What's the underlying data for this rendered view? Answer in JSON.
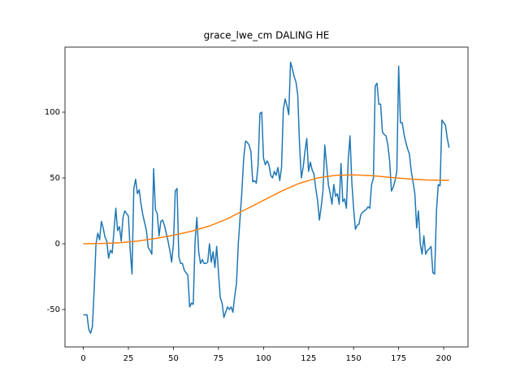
{
  "chart_data": {
    "type": "line",
    "title": "grace_lwe_cm DALING HE",
    "xlim": [
      -10.2,
      213.5
    ],
    "ylim": [
      -78.4,
      149.4
    ],
    "xticks": [
      0,
      25,
      50,
      75,
      100,
      125,
      150,
      175,
      200
    ],
    "yticks": [
      -50,
      0,
      50,
      100
    ],
    "series": [
      {
        "color": "#1f77b4",
        "x": [
          0,
          1,
          2,
          3,
          4,
          5,
          6,
          7,
          8,
          9,
          10,
          11,
          12,
          13,
          14,
          15,
          16,
          17,
          18,
          19,
          20,
          21,
          22,
          23,
          24,
          25,
          26,
          27,
          28,
          29,
          30,
          31,
          32,
          33,
          34,
          35,
          36,
          37,
          38,
          39,
          40,
          41,
          42,
          43,
          44,
          45,
          46,
          47,
          48,
          49,
          50,
          51,
          52,
          53,
          54,
          55,
          56,
          57,
          58,
          59,
          60,
          61,
          62,
          63,
          64,
          65,
          66,
          67,
          68,
          69,
          70,
          71,
          72,
          73,
          74,
          75,
          76,
          77,
          78,
          79,
          80,
          81,
          82,
          83,
          84,
          85,
          86,
          87,
          88,
          89,
          90,
          91,
          92,
          93,
          94,
          95,
          96,
          97,
          98,
          99,
          100,
          101,
          102,
          103,
          104,
          105,
          106,
          107,
          108,
          109,
          110,
          111,
          112,
          113,
          114,
          115,
          116,
          117,
          118,
          119,
          120,
          121,
          122,
          123,
          124,
          125,
          126,
          127,
          128,
          129,
          130,
          131,
          132,
          133,
          134,
          135,
          136,
          137,
          138,
          139,
          140,
          141,
          142,
          143,
          144,
          145,
          146,
          147,
          148,
          149,
          150,
          151,
          152,
          153,
          154,
          155,
          156,
          157,
          158,
          159,
          160,
          161,
          162,
          163,
          164,
          165,
          166,
          167,
          168,
          169,
          170,
          171,
          172,
          173,
          174,
          175,
          176,
          177,
          178,
          179,
          180,
          181,
          182,
          183,
          184,
          185,
          186,
          187,
          188,
          189,
          190,
          191,
          192,
          193,
          194,
          195,
          196,
          197,
          198,
          199,
          200,
          201,
          202,
          203
        ],
        "values": [
          -54,
          -54,
          -54,
          -65,
          -68,
          -63,
          -35,
          0,
          8,
          3,
          17,
          12,
          5,
          2,
          -11,
          -5,
          -7,
          10,
          27,
          10,
          13,
          2,
          20,
          25,
          23,
          21,
          -5,
          -23,
          42,
          49,
          38,
          41,
          30,
          22,
          16,
          10,
          -3,
          -5,
          -8,
          57,
          26,
          23,
          6,
          17,
          18,
          14,
          8,
          2,
          -5,
          -14,
          0,
          40,
          42,
          -10,
          -15,
          -15,
          -20,
          -22,
          -24,
          -48,
          -45,
          -46,
          2,
          20,
          -6,
          -15,
          -12,
          -15,
          -15,
          -14,
          0,
          -14,
          -6,
          -18,
          -2,
          -22,
          -41,
          -45,
          -56,
          -52,
          -48,
          -50,
          -48,
          -52,
          -40,
          -30,
          0,
          20,
          40,
          65,
          78,
          77,
          75,
          70,
          47,
          48,
          46,
          60,
          99,
          100,
          65,
          60,
          63,
          60,
          52,
          50,
          55,
          52,
          58,
          48,
          58,
          102,
          110,
          105,
          98,
          138,
          133,
          127,
          123,
          113,
          75,
          50,
          58,
          70,
          80,
          55,
          62,
          56,
          53,
          42,
          33,
          18,
          28,
          40,
          75,
          60,
          45,
          38,
          30,
          45,
          36,
          38,
          30,
          61,
          32,
          34,
          27,
          63,
          82,
          47,
          27,
          11,
          14,
          15,
          22,
          24,
          25,
          26,
          28,
          27,
          45,
          50,
          120,
          122,
          106,
          106,
          85,
          83,
          82,
          75,
          63,
          40,
          43,
          48,
          55,
          135,
          92,
          92,
          83,
          77,
          72,
          68,
          55,
          47,
          38,
          12,
          25,
          0,
          -8,
          6,
          -8,
          -5,
          -4,
          -2,
          -22,
          -23,
          25,
          45,
          44,
          94,
          92,
          90,
          80,
          73
        ]
      },
      {
        "color": "#ff7f0e",
        "x": [
          0,
          10,
          20,
          30,
          40,
          50,
          60,
          70,
          80,
          90,
          100,
          110,
          120,
          130,
          140,
          150,
          160,
          170,
          180,
          190,
          200,
          203
        ],
        "values": [
          0,
          0.2,
          0.8,
          2,
          4,
          6.5,
          9.5,
          13.5,
          19,
          26,
          33,
          40,
          46,
          50,
          52,
          52.3,
          51.8,
          50.5,
          49.3,
          48.5,
          48.2,
          48.2
        ]
      }
    ]
  }
}
